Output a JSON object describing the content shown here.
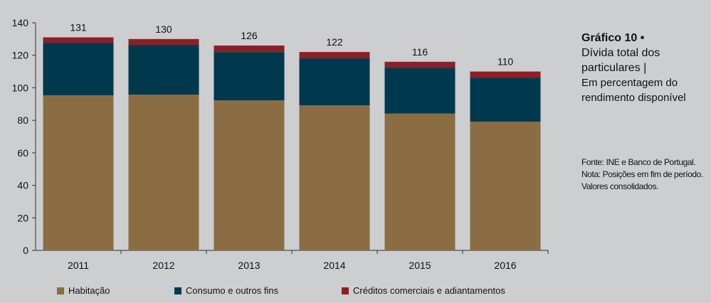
{
  "chart_data": {
    "type": "bar",
    "stacked": true,
    "categories": [
      "2011",
      "2012",
      "2013",
      "2014",
      "2015",
      "2016"
    ],
    "series": [
      {
        "name": "Habitação",
        "color": "#8a6d42",
        "values": [
          95.4,
          95.8,
          92.3,
          89.2,
          84.2,
          79.2
        ]
      },
      {
        "name": "Consumo e outros fins",
        "color": "#00384d",
        "values": [
          32.3,
          30.6,
          29.7,
          28.9,
          28.0,
          26.9
        ]
      },
      {
        "name": "Créditos comerciais e adiantamentos",
        "color": "#8b2028",
        "values": [
          3.3,
          3.6,
          4.0,
          3.9,
          3.8,
          3.9
        ]
      }
    ],
    "totals": [
      131,
      130,
      126,
      122,
      116,
      110
    ],
    "ylim": [
      0,
      140
    ],
    "yticks": [
      0,
      20,
      40,
      60,
      80,
      100,
      120,
      140
    ],
    "legend": "bottom",
    "grid": false
  },
  "title": {
    "number": "Gráfico 10",
    "bullet": "•",
    "main": "Dívida total dos particulares",
    "sep": "|",
    "sub": "Em percentagem do rendimento disponível"
  },
  "notes": {
    "source": "Fonte: INE e Banco de Portugal.",
    "note": "Nota: Posições em fim de período. Valores consolidados."
  }
}
